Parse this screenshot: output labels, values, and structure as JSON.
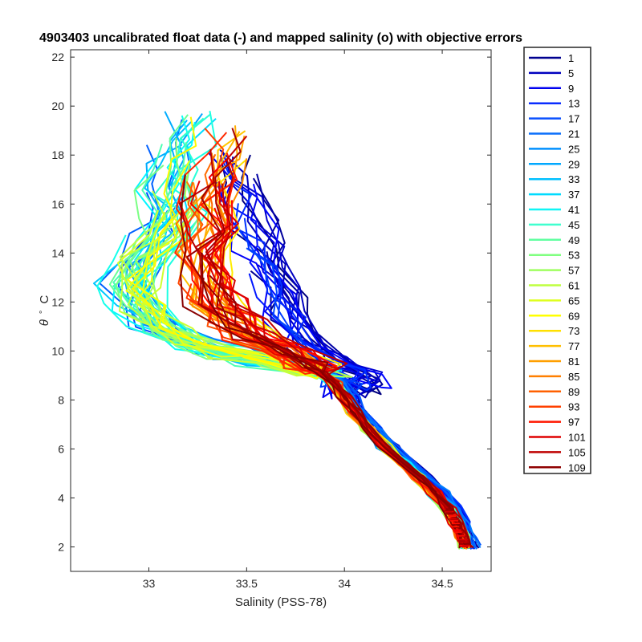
{
  "chart_data": {
    "type": "line",
    "title": "4903403 uncalibrated float data (-) and mapped salinity (o) with objective errors",
    "xlabel": "Salinity (PSS-78)",
    "ylabel_symbol": "θ",
    "ylabel_unit": "C",
    "xlim": [
      32.6,
      34.75
    ],
    "ylim": [
      1,
      22.3
    ],
    "xticks": [
      33,
      33.5,
      34,
      34.5
    ],
    "xtick_labels": [
      "33",
      "33.5",
      "34",
      "34.5"
    ],
    "yticks": [
      2,
      4,
      6,
      8,
      10,
      12,
      14,
      16,
      18,
      20,
      22
    ],
    "ytick_labels": [
      "2",
      "4",
      "6",
      "8",
      "10",
      "12",
      "14",
      "16",
      "18",
      "20",
      "22"
    ],
    "grid": false,
    "legend_position": "outside-right",
    "legend": [
      "1",
      "5",
      "9",
      "13",
      "17",
      "21",
      "25",
      "29",
      "33",
      "37",
      "41",
      "45",
      "49",
      "53",
      "57",
      "61",
      "65",
      "69",
      "73",
      "77",
      "81",
      "85",
      "89",
      "93",
      "97",
      "101",
      "105",
      "109"
    ],
    "colors": [
      "#00008f",
      "#0000bf",
      "#0000ef",
      "#0b2cff",
      "#0b50ff",
      "#0a6ffb",
      "#0090ff",
      "#00a8ff",
      "#00c0ff",
      "#00dbff",
      "#10f5f5",
      "#40ffcf",
      "#60ffa0",
      "#80ff80",
      "#9fff60",
      "#bfff40",
      "#dfff20",
      "#ffff00",
      "#ffe000",
      "#ffbf00",
      "#ff9f00",
      "#ff7f00",
      "#ff6000",
      "#ff4000",
      "#ff1800",
      "#df0000",
      "#bf0000",
      "#8f0000"
    ],
    "deep_profile": [
      [
        34.62,
        2.0
      ],
      [
        34.6,
        2.4
      ],
      [
        34.57,
        3.0
      ],
      [
        34.53,
        3.6
      ],
      [
        34.46,
        4.2
      ],
      [
        34.38,
        4.8
      ],
      [
        34.3,
        5.4
      ],
      [
        34.2,
        6.1
      ],
      [
        34.12,
        6.8
      ],
      [
        34.05,
        7.5
      ],
      [
        34.0,
        8.1
      ],
      [
        33.95,
        8.7
      ],
      [
        33.88,
        9.1
      ]
    ],
    "family_a_shallow": [
      [
        33.85,
        9.3
      ],
      [
        33.7,
        10.1
      ],
      [
        33.55,
        10.6
      ],
      [
        33.45,
        11.2
      ],
      [
        33.35,
        12.0
      ],
      [
        33.3,
        13.0
      ],
      [
        33.28,
        14.0
      ],
      [
        33.32,
        15.0
      ],
      [
        33.3,
        16.0
      ],
      [
        33.35,
        17.0
      ],
      [
        33.38,
        18.0
      ],
      [
        33.42,
        19.0
      ]
    ],
    "family_b_shallow": [
      [
        33.86,
        9.1
      ],
      [
        33.6,
        9.6
      ],
      [
        33.4,
        9.9
      ],
      [
        33.2,
        10.3
      ],
      [
        33.05,
        11.0
      ],
      [
        32.95,
        11.8
      ],
      [
        32.9,
        12.7
      ],
      [
        32.95,
        13.6
      ],
      [
        33.05,
        14.6
      ],
      [
        33.1,
        15.6
      ],
      [
        33.08,
        16.6
      ],
      [
        33.1,
        17.6
      ],
      [
        33.15,
        18.6
      ],
      [
        33.2,
        19.6
      ]
    ],
    "family_c_shallow": [
      [
        34.02,
        8.3
      ],
      [
        34.06,
        8.7
      ],
      [
        34.04,
        9.1
      ],
      [
        33.9,
        9.6
      ],
      [
        33.78,
        10.4
      ],
      [
        33.7,
        11.4
      ],
      [
        33.65,
        12.4
      ],
      [
        33.6,
        13.4
      ],
      [
        33.55,
        14.2
      ],
      [
        33.5,
        15.2
      ],
      [
        33.45,
        16.2
      ],
      [
        33.4,
        17.0
      ],
      [
        33.35,
        18.0
      ]
    ]
  }
}
